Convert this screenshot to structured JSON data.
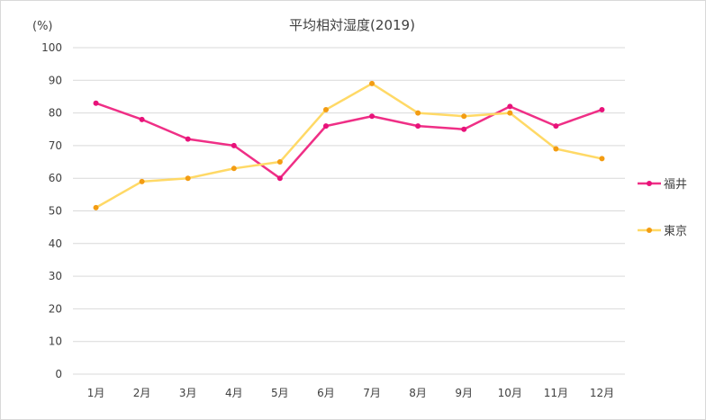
{
  "chart_data": {
    "type": "line",
    "title": "平均相対湿度(2019)",
    "ylabel": "(%)",
    "xlabel": "",
    "ylim": [
      0,
      100
    ],
    "yticks": [
      "0",
      "10",
      "20",
      "30",
      "40",
      "50",
      "60",
      "70",
      "80",
      "90",
      "100"
    ],
    "categories": [
      "1月",
      "2月",
      "3月",
      "4月",
      "5月",
      "6月",
      "7月",
      "8月",
      "9月",
      "10月",
      "11月",
      "12月"
    ],
    "grid": true,
    "legend": "right",
    "series": [
      {
        "name": "福井",
        "color": "#ef2f86",
        "marker_color": "#e8127a",
        "values": [
          83,
          78,
          72,
          70,
          60,
          76,
          79,
          76,
          75,
          82,
          76,
          81
        ]
      },
      {
        "name": "東京",
        "color": "#ffd966",
        "marker_color": "#f39c12",
        "values": [
          51,
          59,
          60,
          63,
          65,
          81,
          89,
          80,
          79,
          80,
          69,
          66
        ]
      }
    ]
  }
}
